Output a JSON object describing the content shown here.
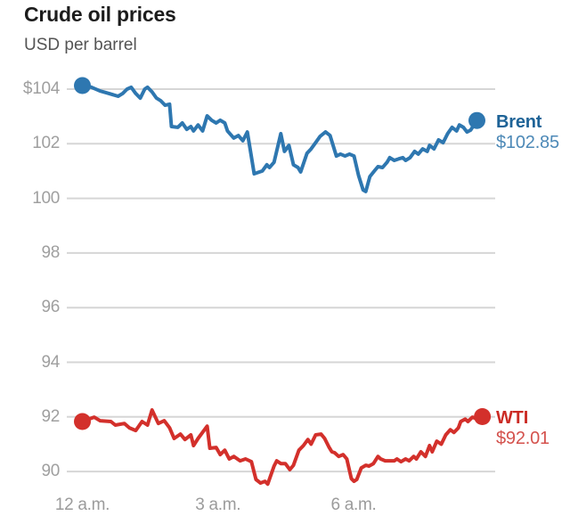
{
  "header": {
    "title": "Crude oil prices",
    "subtitle": "USD per barrel"
  },
  "colors": {
    "background": "#ffffff",
    "grid": "#d6d6d6",
    "axis_text": "#9f9f9f",
    "title_text": "#1c1c1c",
    "subtitle_text": "#545454"
  },
  "chart_data": {
    "type": "line",
    "title": "Crude oil prices",
    "subtitle": "USD per barrel",
    "grid": "horizontal-only",
    "legend_position": "right-end-of-line",
    "x_axis": {
      "unit": "hours since midnight",
      "range": [
        0,
        8.85
      ],
      "ticks": [
        {
          "t": 0,
          "label": "12 a.m."
        },
        {
          "t": 3,
          "label": "3 a.m."
        },
        {
          "t": 6,
          "label": "6 a.m."
        }
      ]
    },
    "y_axis": {
      "range": [
        89.3,
        104.4
      ],
      "ticks": [
        {
          "v": 104,
          "label": "$104"
        },
        {
          "v": 102,
          "label": "102"
        },
        {
          "v": 100,
          "label": "100"
        },
        {
          "v": 98,
          "label": "98"
        },
        {
          "v": 96,
          "label": "96"
        },
        {
          "v": 94,
          "label": "94"
        },
        {
          "v": 92,
          "label": "92"
        },
        {
          "v": 90,
          "label": "90"
        }
      ]
    },
    "series": [
      {
        "name": "Brent",
        "end_value": 102.85,
        "end_value_label": "$102.85",
        "line_color": "#2e77b0",
        "label_color": "#1e6397",
        "value_color": "#4d89b7",
        "points": [
          [
            0,
            104.13
          ],
          [
            0.2,
            104.07
          ],
          [
            0.39,
            103.93
          ],
          [
            0.59,
            103.84
          ],
          [
            0.79,
            103.74
          ],
          [
            0.89,
            103.84
          ],
          [
            0.99,
            104.0
          ],
          [
            1.08,
            104.07
          ],
          [
            1.18,
            103.84
          ],
          [
            1.28,
            103.67
          ],
          [
            1.38,
            104.0
          ],
          [
            1.44,
            104.07
          ],
          [
            1.54,
            103.9
          ],
          [
            1.64,
            103.67
          ],
          [
            1.73,
            103.58
          ],
          [
            1.83,
            103.41
          ],
          [
            1.93,
            103.45
          ],
          [
            1.97,
            102.63
          ],
          [
            2.11,
            102.6
          ],
          [
            2.21,
            102.76
          ],
          [
            2.31,
            102.53
          ],
          [
            2.4,
            102.63
          ],
          [
            2.46,
            102.47
          ],
          [
            2.56,
            102.69
          ],
          [
            2.66,
            102.47
          ],
          [
            2.76,
            103.02
          ],
          [
            2.86,
            102.86
          ],
          [
            2.96,
            102.76
          ],
          [
            3.05,
            102.86
          ],
          [
            3.15,
            102.76
          ],
          [
            3.21,
            102.47
          ],
          [
            3.35,
            102.21
          ],
          [
            3.45,
            102.3
          ],
          [
            3.55,
            102.11
          ],
          [
            3.65,
            102.43
          ],
          [
            3.8,
            100.9
          ],
          [
            3.98,
            101.0
          ],
          [
            4.08,
            101.23
          ],
          [
            4.14,
            101.13
          ],
          [
            4.24,
            101.32
          ],
          [
            4.39,
            102.37
          ],
          [
            4.47,
            101.72
          ],
          [
            4.57,
            101.94
          ],
          [
            4.67,
            101.23
          ],
          [
            4.77,
            101.13
          ],
          [
            4.83,
            100.97
          ],
          [
            4.97,
            101.65
          ],
          [
            5.06,
            101.81
          ],
          [
            5.16,
            102.04
          ],
          [
            5.26,
            102.27
          ],
          [
            5.38,
            102.43
          ],
          [
            5.48,
            102.3
          ],
          [
            5.62,
            101.55
          ],
          [
            5.71,
            101.62
          ],
          [
            5.81,
            101.55
          ],
          [
            5.91,
            101.62
          ],
          [
            6.01,
            101.55
          ],
          [
            6.11,
            100.84
          ],
          [
            6.21,
            100.31
          ],
          [
            6.27,
            100.25
          ],
          [
            6.36,
            100.8
          ],
          [
            6.46,
            101.0
          ],
          [
            6.54,
            101.16
          ],
          [
            6.64,
            101.13
          ],
          [
            6.74,
            101.32
          ],
          [
            6.8,
            101.49
          ],
          [
            6.9,
            101.39
          ],
          [
            7.0,
            101.45
          ],
          [
            7.09,
            101.49
          ],
          [
            7.15,
            101.39
          ],
          [
            7.25,
            101.49
          ],
          [
            7.35,
            101.72
          ],
          [
            7.43,
            101.62
          ],
          [
            7.53,
            101.81
          ],
          [
            7.63,
            101.72
          ],
          [
            7.68,
            101.94
          ],
          [
            7.78,
            101.81
          ],
          [
            7.88,
            102.14
          ],
          [
            7.98,
            102.04
          ],
          [
            8.08,
            102.37
          ],
          [
            8.18,
            102.6
          ],
          [
            8.28,
            102.47
          ],
          [
            8.34,
            102.69
          ],
          [
            8.43,
            102.6
          ],
          [
            8.51,
            102.43
          ],
          [
            8.59,
            102.5
          ],
          [
            8.73,
            102.85
          ]
        ]
      },
      {
        "name": "WTI",
        "end_value": 92.01,
        "end_value_label": "$92.01",
        "line_color": "#d3302b",
        "label_color": "#cb2b25",
        "value_color": "#d4524d",
        "points": [
          [
            0,
            91.83
          ],
          [
            0.26,
            91.99
          ],
          [
            0.39,
            91.86
          ],
          [
            0.63,
            91.83
          ],
          [
            0.73,
            91.7
          ],
          [
            0.93,
            91.76
          ],
          [
            1.04,
            91.6
          ],
          [
            1.18,
            91.5
          ],
          [
            1.32,
            91.83
          ],
          [
            1.44,
            91.7
          ],
          [
            1.54,
            92.25
          ],
          [
            1.68,
            91.76
          ],
          [
            1.81,
            91.86
          ],
          [
            1.93,
            91.6
          ],
          [
            2.03,
            91.21
          ],
          [
            2.17,
            91.37
          ],
          [
            2.27,
            91.17
          ],
          [
            2.4,
            91.34
          ],
          [
            2.46,
            90.95
          ],
          [
            2.56,
            91.21
          ],
          [
            2.76,
            91.66
          ],
          [
            2.82,
            90.85
          ],
          [
            2.96,
            90.88
          ],
          [
            3.05,
            90.62
          ],
          [
            3.15,
            90.78
          ],
          [
            3.25,
            90.46
          ],
          [
            3.35,
            90.55
          ],
          [
            3.49,
            90.39
          ],
          [
            3.61,
            90.46
          ],
          [
            3.74,
            90.36
          ],
          [
            3.84,
            89.71
          ],
          [
            3.94,
            89.58
          ],
          [
            4.04,
            89.64
          ],
          [
            4.1,
            89.54
          ],
          [
            4.24,
            90.2
          ],
          [
            4.3,
            90.39
          ],
          [
            4.39,
            90.29
          ],
          [
            4.49,
            90.29
          ],
          [
            4.59,
            90.07
          ],
          [
            4.67,
            90.23
          ],
          [
            4.79,
            90.78
          ],
          [
            4.89,
            90.95
          ],
          [
            4.99,
            91.17
          ],
          [
            5.06,
            91.0
          ],
          [
            5.16,
            91.34
          ],
          [
            5.28,
            91.37
          ],
          [
            5.36,
            91.21
          ],
          [
            5.46,
            90.88
          ],
          [
            5.52,
            90.72
          ],
          [
            5.58,
            90.69
          ],
          [
            5.67,
            90.55
          ],
          [
            5.77,
            90.62
          ],
          [
            5.85,
            90.46
          ],
          [
            5.95,
            89.74
          ],
          [
            6.01,
            89.64
          ],
          [
            6.07,
            89.71
          ],
          [
            6.17,
            90.13
          ],
          [
            6.27,
            90.23
          ],
          [
            6.34,
            90.2
          ],
          [
            6.44,
            90.29
          ],
          [
            6.54,
            90.55
          ],
          [
            6.6,
            90.46
          ],
          [
            6.7,
            90.39
          ],
          [
            6.8,
            90.39
          ],
          [
            6.9,
            90.39
          ],
          [
            6.96,
            90.46
          ],
          [
            7.05,
            90.36
          ],
          [
            7.15,
            90.46
          ],
          [
            7.23,
            90.39
          ],
          [
            7.33,
            90.55
          ],
          [
            7.39,
            90.46
          ],
          [
            7.49,
            90.72
          ],
          [
            7.59,
            90.55
          ],
          [
            7.68,
            90.95
          ],
          [
            7.74,
            90.72
          ],
          [
            7.84,
            91.11
          ],
          [
            7.94,
            91.0
          ],
          [
            8.04,
            91.34
          ],
          [
            8.14,
            91.53
          ],
          [
            8.22,
            91.43
          ],
          [
            8.32,
            91.6
          ],
          [
            8.37,
            91.83
          ],
          [
            8.47,
            91.92
          ],
          [
            8.53,
            91.83
          ],
          [
            8.63,
            91.99
          ],
          [
            8.73,
            91.92
          ],
          [
            8.85,
            92.01
          ]
        ]
      }
    ]
  }
}
